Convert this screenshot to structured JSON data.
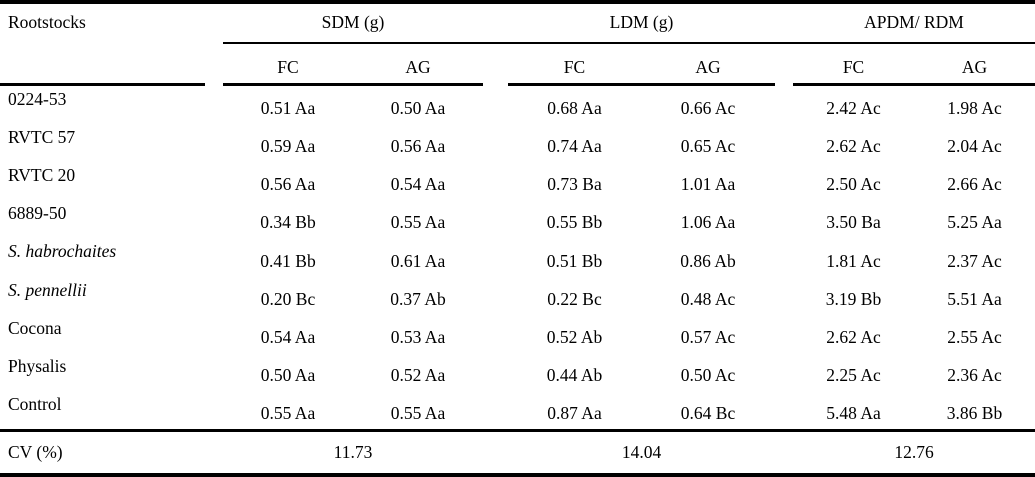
{
  "table": {
    "corner_label": "Rootstocks",
    "groups": [
      {
        "label": "SDM (g)",
        "sub": [
          "FC",
          "AG"
        ]
      },
      {
        "label": "LDM (g)",
        "sub": [
          "FC",
          "AG"
        ]
      },
      {
        "label": "APDM/ RDM",
        "sub": [
          "FC",
          "AG"
        ]
      }
    ],
    "rows": [
      {
        "name": "0224-53",
        "italic": false,
        "values": [
          "0.51 Aa",
          "0.50 Aa",
          "0.68 Aa",
          "0.66 Ac",
          "2.42 Ac",
          "1.98 Ac"
        ]
      },
      {
        "name": "RVTC 57",
        "italic": false,
        "values": [
          "0.59 Aa",
          "0.56 Aa",
          "0.74 Aa",
          "0.65 Ac",
          "2.62 Ac",
          "2.04 Ac"
        ]
      },
      {
        "name": "RVTC 20",
        "italic": false,
        "values": [
          "0.56 Aa",
          "0.54 Aa",
          "0.73 Ba",
          "1.01 Aa",
          "2.50 Ac",
          "2.66 Ac"
        ]
      },
      {
        "name": "6889-50",
        "italic": false,
        "values": [
          "0.34 Bb",
          "0.55 Aa",
          "0.55 Bb",
          "1.06 Aa",
          "3.50 Ba",
          "5.25 Aa"
        ]
      },
      {
        "name": "S. habrochaites",
        "italic": true,
        "values": [
          "0.41 Bb",
          "0.61 Aa",
          "0.51 Bb",
          "0.86 Ab",
          "1.81 Ac",
          "2.37 Ac"
        ]
      },
      {
        "name": "S. pennellii",
        "italic": true,
        "values": [
          "0.20 Bc",
          "0.37 Ab",
          "0.22 Bc",
          "0.48 Ac",
          "3.19 Bb",
          "5.51 Aa"
        ]
      },
      {
        "name": "Cocona",
        "italic": false,
        "values": [
          "0.54 Aa",
          "0.53 Aa",
          "0.52 Ab",
          "0.57 Ac",
          "2.62 Ac",
          "2.55 Ac"
        ]
      },
      {
        "name": "Physalis",
        "italic": false,
        "values": [
          "0.50 Aa",
          "0.52 Aa",
          "0.44 Ab",
          "0.50 Ac",
          "2.25 Ac",
          "2.36 Ac"
        ]
      },
      {
        "name": "Control",
        "italic": false,
        "values": [
          "0.55 Aa",
          "0.55 Aa",
          "0.87 Aa",
          "0.64 Bc",
          "5.48 Aa",
          "3.86 Bb"
        ]
      }
    ],
    "footer": {
      "label": "CV (%)",
      "values": [
        "11.73",
        "14.04",
        "12.76"
      ]
    }
  },
  "colors": {
    "text": "#000000",
    "background": "#ffffff",
    "rule": "#000000"
  }
}
